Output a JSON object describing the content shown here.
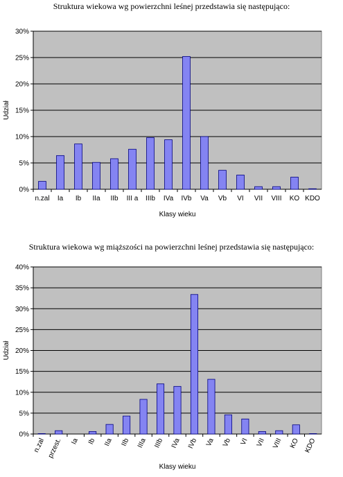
{
  "chart_data": [
    {
      "type": "bar",
      "title": "Struktura wiekowa wg powierzchni leśnej przedstawia się następująco:",
      "xlabel": "Klasy wieku",
      "ylabel": "Udział",
      "categories": [
        "n.zal",
        "Ia",
        "Ib",
        "IIa",
        "IIb",
        "III a",
        "IIIb",
        "IVa",
        "IVb",
        "Va",
        "Vb",
        "VI",
        "VII",
        "VIII",
        "KO",
        "KDO"
      ],
      "values": [
        1.5,
        6.4,
        8.6,
        5.1,
        5.8,
        7.6,
        9.8,
        9.4,
        25.2,
        10.0,
        3.6,
        2.7,
        0.5,
        0.5,
        2.3,
        0.1
      ],
      "ylim": [
        0,
        30
      ],
      "yticks": [
        "0%",
        "5%",
        "10%",
        "15%",
        "20%",
        "25%",
        "30%"
      ],
      "grid": true,
      "colors": {
        "bar": "#8484f2",
        "bar_stroke": "#000080",
        "plot_bg": "#c0c0c0",
        "grid": "#000000"
      }
    },
    {
      "type": "bar",
      "title": "Struktura wiekowa wg miąższości na powierzchni leśnej przedstawia się następująco:",
      "xlabel": "Klasy wieku",
      "ylabel": "Udział",
      "categories": [
        "n.zal",
        "przest.",
        "Ia",
        "Ib",
        "IIa",
        "IIb",
        "IIIa",
        "IIIb",
        "IVa",
        "IVb",
        "Va",
        "Vb",
        "VI",
        "VII",
        "VIII",
        "KO",
        "KDO"
      ],
      "values": [
        0.1,
        0.8,
        0.0,
        0.6,
        2.3,
        4.3,
        8.3,
        12.0,
        11.4,
        33.4,
        13.1,
        4.6,
        3.6,
        0.6,
        0.8,
        2.2,
        0.1
      ],
      "ylim": [
        0,
        40
      ],
      "yticks": [
        "0%",
        "5%",
        "10%",
        "15%",
        "20%",
        "25%",
        "30%",
        "35%",
        "40%"
      ],
      "grid": true,
      "colors": {
        "bar": "#8484f2",
        "bar_stroke": "#000080",
        "plot_bg": "#c0c0c0",
        "grid": "#000000"
      }
    }
  ]
}
